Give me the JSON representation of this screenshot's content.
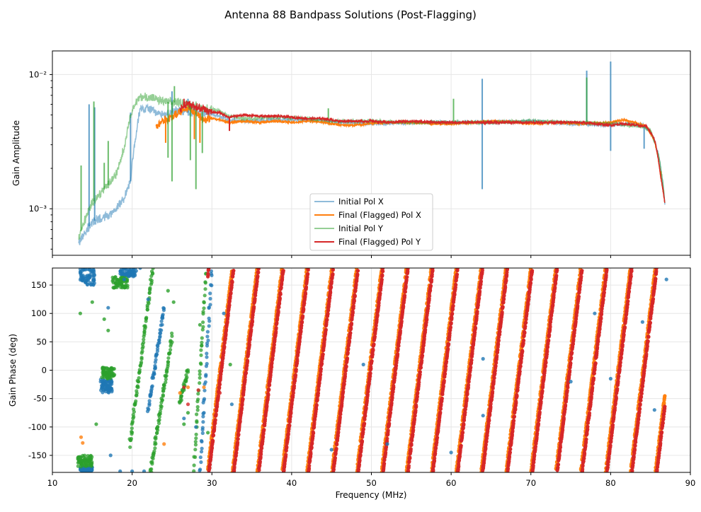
{
  "figure_title": "Antenna 88 Bandpass Solutions (Post-Flagging)",
  "colors": {
    "initial_x": "#1f77b4",
    "final_x": "#ff7f0e",
    "initial_y": "#2ca02c",
    "final_y": "#d62728",
    "grid": "#e6e6e6"
  },
  "chart_data": [
    {
      "type": "line",
      "title": "",
      "xlabel": "",
      "ylabel": "Gain Amplitude",
      "yscale": "log",
      "xlim": [
        10,
        90
      ],
      "ylim": [
        0.00045,
        0.015
      ],
      "yticks": [
        0.001,
        0.01
      ],
      "ytick_labels": [
        "10⁻³",
        "10⁻²"
      ],
      "grid": true,
      "legend_position": "lower-center",
      "series": [
        {
          "name": "Initial Pol X",
          "color": "#1f77b4",
          "alpha": 0.5,
          "x": [
            13.3,
            14,
            15,
            16,
            17,
            18,
            19,
            19.8,
            20.5,
            21,
            22,
            23,
            24,
            25,
            26,
            27,
            28,
            29,
            30,
            31,
            32,
            34,
            38,
            42,
            46,
            50,
            55,
            60,
            65,
            70,
            75,
            80,
            82,
            84,
            85,
            86,
            86.8
          ],
          "y": [
            0.00055,
            0.00065,
            0.0008,
            0.00085,
            0.0009,
            0.001,
            0.0012,
            0.0016,
            0.0035,
            0.0055,
            0.0056,
            0.0052,
            0.005,
            0.0052,
            0.0055,
            0.0052,
            0.0051,
            0.0052,
            0.0051,
            0.0049,
            0.0046,
            0.0045,
            0.0046,
            0.0046,
            0.0044,
            0.0043,
            0.0044,
            0.0044,
            0.0044,
            0.0045,
            0.0043,
            0.0042,
            0.0043,
            0.0042,
            0.0038,
            0.0025,
            0.0011
          ],
          "spikes": [
            [
              14.6,
              0.006
            ],
            [
              15.3,
              0.0057
            ],
            [
              19.8,
              0.0052
            ],
            [
              25,
              0.0075
            ],
            [
              27,
              0.0066
            ],
            [
              63.9,
              0.0093
            ],
            [
              77,
              0.0107
            ],
            [
              80,
              0.0125
            ],
            [
              80,
              0.0027
            ],
            [
              63.9,
              0.0014
            ],
            [
              84.2,
              0.0028
            ]
          ]
        },
        {
          "name": "Final (Flagged) Pol X",
          "color": "#ff7f0e",
          "alpha": 1,
          "x": [
            23,
            24,
            25,
            26,
            27,
            28,
            29,
            30,
            31,
            32,
            34,
            36,
            38,
            40,
            42,
            44,
            46,
            48,
            50,
            52,
            55,
            58,
            60,
            63,
            66,
            70,
            73,
            76,
            80,
            81.5,
            83,
            84.5,
            85.5,
            86.3,
            86.8
          ],
          "y": [
            0.0041,
            0.0046,
            0.0048,
            0.0053,
            0.0057,
            0.0052,
            0.0046,
            0.0047,
            0.0046,
            0.0044,
            0.0045,
            0.0044,
            0.0045,
            0.0044,
            0.0045,
            0.0044,
            0.0042,
            0.0042,
            0.0043,
            0.0044,
            0.0044,
            0.0043,
            0.0043,
            0.0044,
            0.0045,
            0.0043,
            0.0044,
            0.0043,
            0.0044,
            0.0046,
            0.0044,
            0.0041,
            0.0032,
            0.0017,
            0.0011
          ],
          "spikes": [
            [
              24.2,
              0.0031
            ],
            [
              27.8,
              0.0033
            ],
            [
              28.5,
              0.0031
            ],
            [
              86.3,
              0.0019
            ]
          ]
        },
        {
          "name": "Initial Pol Y",
          "color": "#2ca02c",
          "alpha": 0.5,
          "x": [
            13.3,
            14,
            15,
            16,
            17,
            18,
            19,
            20,
            21,
            22,
            23,
            24,
            25,
            26,
            27,
            28,
            29,
            30,
            31,
            32,
            34,
            38,
            42,
            46,
            50,
            55,
            60,
            65,
            70,
            75,
            80,
            82,
            84,
            85,
            86,
            86.8
          ],
          "y": [
            0.0006,
            0.0008,
            0.0011,
            0.0013,
            0.0015,
            0.0018,
            0.0028,
            0.0055,
            0.0068,
            0.0068,
            0.0065,
            0.0063,
            0.0062,
            0.0062,
            0.006,
            0.0058,
            0.0056,
            0.0055,
            0.0053,
            0.0049,
            0.0047,
            0.0048,
            0.0047,
            0.0045,
            0.0045,
            0.0044,
            0.0044,
            0.0044,
            0.0045,
            0.0044,
            0.0043,
            0.0042,
            0.0041,
            0.0038,
            0.0025,
            0.0011
          ],
          "spikes": [
            [
              13.6,
              0.0021
            ],
            [
              15.2,
              0.0063
            ],
            [
              16.5,
              0.0022
            ],
            [
              17,
              0.0032
            ],
            [
              24.5,
              0.0024
            ],
            [
              25.3,
              0.0082
            ],
            [
              25,
              0.0016
            ],
            [
              27.3,
              0.0023
            ],
            [
              28,
              0.0014
            ],
            [
              28.8,
              0.0026
            ],
            [
              44.6,
              0.0056
            ],
            [
              60.3,
              0.0066
            ],
            [
              77,
              0.0095
            ]
          ]
        },
        {
          "name": "Final (Flagged) Pol Y",
          "color": "#d62728",
          "alpha": 1,
          "x": [
            26,
            27,
            28,
            29,
            30,
            31,
            32,
            33,
            34,
            36,
            38,
            40,
            42,
            44,
            46,
            48,
            50,
            52,
            55,
            58,
            60,
            63,
            66,
            70,
            73,
            76,
            80,
            81.5,
            83,
            84.5,
            85.5,
            86.3,
            86.8
          ],
          "y": [
            0.0055,
            0.0062,
            0.0057,
            0.0055,
            0.0052,
            0.0052,
            0.0048,
            0.0049,
            0.005,
            0.0049,
            0.0049,
            0.0048,
            0.0047,
            0.0047,
            0.0045,
            0.0045,
            0.0045,
            0.0044,
            0.0045,
            0.0044,
            0.0044,
            0.0044,
            0.0044,
            0.0044,
            0.0044,
            0.0044,
            0.0042,
            0.0043,
            0.0042,
            0.0041,
            0.0033,
            0.0017,
            0.0011
          ],
          "spikes": [
            [
              32.2,
              0.0038
            ],
            [
              26.5,
              0.0066
            ]
          ]
        }
      ]
    },
    {
      "type": "scatter",
      "title": "",
      "xlabel": "Frequency (MHz)",
      "ylabel": "Gain Phase (deg)",
      "xlim": [
        10,
        90
      ],
      "ylim": [
        -180,
        180
      ],
      "xticks": [
        10,
        20,
        30,
        40,
        50,
        60,
        70,
        80,
        90
      ],
      "yticks": [
        -150,
        -100,
        -50,
        0,
        50,
        100,
        150
      ],
      "grid": true,
      "phase_wrap": {
        "description": "phase ramps wrap from -180 to 180 deg repeatedly",
        "start_mhz": 29.5,
        "period_mhz": 3.12,
        "end_mhz": 86.8
      },
      "series": [
        {
          "name": "Initial Pol X",
          "color": "#1f77b4",
          "clusters": [
            {
              "x": [
                13.5,
                15.3
              ],
              "y": [
                150,
                178
              ]
            },
            {
              "x": [
                16,
                17.5
              ],
              "y": [
                -40,
                -15
              ]
            },
            {
              "x": [
                18.5,
                20.5
              ],
              "y": [
                165,
                180
              ]
            },
            {
              "x": [
                13.5,
                15
              ],
              "y": [
                -178,
                -170
              ]
            }
          ],
          "outliers": [
            [
              17,
              110
            ],
            [
              19,
              160
            ],
            [
              20.5,
              175
            ],
            [
              21,
              180
            ],
            [
              22,
              125
            ],
            [
              17.3,
              -150
            ],
            [
              18.5,
              -178
            ],
            [
              20,
              -178
            ],
            [
              21.5,
              -178
            ],
            [
              26.5,
              -85
            ],
            [
              28,
              -100
            ],
            [
              29,
              -75
            ],
            [
              31.5,
              100
            ],
            [
              32.5,
              -60
            ],
            [
              45,
              -140
            ],
            [
              49,
              10
            ],
            [
              52,
              -130
            ],
            [
              60,
              -145
            ],
            [
              64,
              20
            ],
            [
              64,
              -80
            ],
            [
              75,
              -20
            ],
            [
              78,
              100
            ],
            [
              80,
              -15
            ],
            [
              84,
              85
            ],
            [
              85.5,
              -70
            ],
            [
              87,
              160
            ]
          ]
        },
        {
          "name": "Final (Flagged) Pol X",
          "color": "#ff7f0e",
          "outliers": [
            [
              24,
              -130
            ],
            [
              26,
              -40
            ],
            [
              27,
              -30
            ],
            [
              29,
              -30
            ],
            [
              13.6,
              -118
            ],
            [
              13.8,
              -128
            ]
          ]
        },
        {
          "name": "Initial Pol Y",
          "color": "#2ca02c",
          "clusters": [
            {
              "x": [
                13.2,
                15
              ],
              "y": [
                -170,
                -150
              ]
            },
            {
              "x": [
                16.2,
                17.8
              ],
              "y": [
                -15,
                5
              ]
            },
            {
              "x": [
                17.5,
                19.5
              ],
              "y": [
                145,
                165
              ]
            }
          ],
          "outliers": [
            [
              13.5,
              100
            ],
            [
              15,
              120
            ],
            [
              16.5,
              90
            ],
            [
              17,
              70
            ],
            [
              15.5,
              -95
            ],
            [
              24.5,
              140
            ],
            [
              25.2,
              120
            ],
            [
              26.5,
              -95
            ],
            [
              27,
              -75
            ],
            [
              28.5,
              80
            ],
            [
              29.5,
              -110
            ],
            [
              32.3,
              10
            ]
          ]
        },
        {
          "name": "Final (Flagged) Pol Y",
          "color": "#d62728",
          "outliers": [
            [
              26.5,
              -30
            ],
            [
              27,
              -60
            ],
            [
              28.3,
              -35
            ],
            [
              31,
              -40
            ]
          ]
        }
      ],
      "early_ramps": [
        {
          "series": "Initial Pol Y",
          "x_start": 19.7,
          "x_end": 22.6,
          "y_start": -130,
          "y_end": 180
        },
        {
          "series": "Initial Pol Y",
          "x_start": 22.3,
          "x_end": 25,
          "y_start": -180,
          "y_end": 60
        },
        {
          "series": "Initial Pol X",
          "x_start": 22.0,
          "x_end": 24.0,
          "y_start": -70,
          "y_end": 110
        },
        {
          "series": "Initial Pol Y",
          "x_start": 26.0,
          "x_end": 27.0,
          "y_start": -60,
          "y_end": 0
        },
        {
          "series": "Initial Pol X",
          "x_start": 28.5,
          "x_end": 30.0,
          "y_start": -180,
          "y_end": 180
        },
        {
          "series": "Initial Pol Y",
          "x_start": 27.7,
          "x_end": 29.3,
          "y_start": -180,
          "y_end": 180
        }
      ]
    }
  ]
}
